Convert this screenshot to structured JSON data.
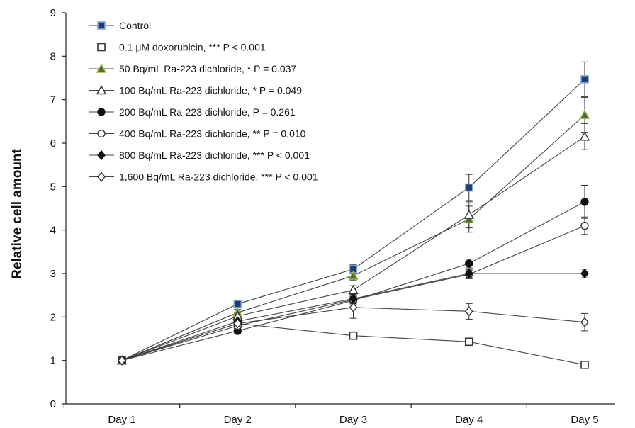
{
  "chart_data": {
    "type": "line",
    "title": "",
    "xlabel": "",
    "ylabel": "Relative cell amount",
    "ylim": [
      0,
      9
    ],
    "yticks": [
      0,
      1,
      2,
      3,
      4,
      5,
      6,
      7,
      8,
      9
    ],
    "categories": [
      "Day 1",
      "Day 2",
      "Day 3",
      "Day 4",
      "Day 5"
    ],
    "grid": false,
    "legend_position": "top-left",
    "series": [
      {
        "name": "Control",
        "marker": "square",
        "fill": "#1f3c6e",
        "edge": "#7fa7d6",
        "values": [
          1,
          2.3,
          3.1,
          4.98,
          7.47
        ],
        "errors": [
          0,
          0.08,
          0.1,
          0.3,
          0.4
        ]
      },
      {
        "name": "0.1 μM doxorubicin, *** P < 0.001",
        "marker": "square",
        "fill": "#ffffff",
        "edge": "#333333",
        "values": [
          1,
          1.85,
          1.57,
          1.43,
          0.9
        ],
        "errors": [
          0,
          0.05,
          0.05,
          0.05,
          0.05
        ]
      },
      {
        "name": "50 Bq/mL Ra-223 dichloride, * P = 0.037",
        "marker": "triangle",
        "fill": "#556b2f",
        "edge": "#8fbc3f",
        "values": [
          1,
          2.1,
          2.95,
          4.25,
          6.65
        ],
        "errors": [
          0,
          0.08,
          0.1,
          0.3,
          0.4
        ]
      },
      {
        "name": "100 Bq/mL Ra-223 dichloride, * P = 0.049",
        "marker": "triangle",
        "fill": "#ffffff",
        "edge": "#333333",
        "values": [
          1,
          2.02,
          2.62,
          4.35,
          6.15
        ],
        "errors": [
          0,
          0.08,
          0.1,
          0.3,
          0.3
        ]
      },
      {
        "name": "200 Bq/mL Ra-223 dichloride, P = 0.261",
        "marker": "circle",
        "fill": "#111111",
        "edge": "#111111",
        "values": [
          1,
          1.68,
          2.38,
          3.23,
          4.65
        ],
        "errors": [
          0,
          0.06,
          0.08,
          0.1,
          0.38
        ]
      },
      {
        "name": "400 Bq/mL Ra-223 dichloride, ** P = 0.010",
        "marker": "circle",
        "fill": "#ffffff",
        "edge": "#333333",
        "values": [
          1,
          1.8,
          2.4,
          2.98,
          4.1
        ],
        "errors": [
          0,
          0.06,
          0.08,
          0.1,
          0.2
        ]
      },
      {
        "name": "800 Bq/mL Ra-223 dichloride, *** P < 0.001",
        "marker": "diamond",
        "fill": "#111111",
        "edge": "#111111",
        "values": [
          1,
          1.9,
          2.42,
          3.0,
          3.0
        ],
        "errors": [
          0,
          0.06,
          0.08,
          0.1,
          0.1
        ]
      },
      {
        "name": "1,600 Bq/mL Ra-223 dichloride, *** P < 0.001",
        "marker": "diamond",
        "fill": "#ffffff",
        "edge": "#333333",
        "values": [
          1,
          1.85,
          2.22,
          2.13,
          1.88
        ],
        "errors": [
          0,
          0.06,
          0.25,
          0.18,
          0.2
        ]
      }
    ]
  }
}
